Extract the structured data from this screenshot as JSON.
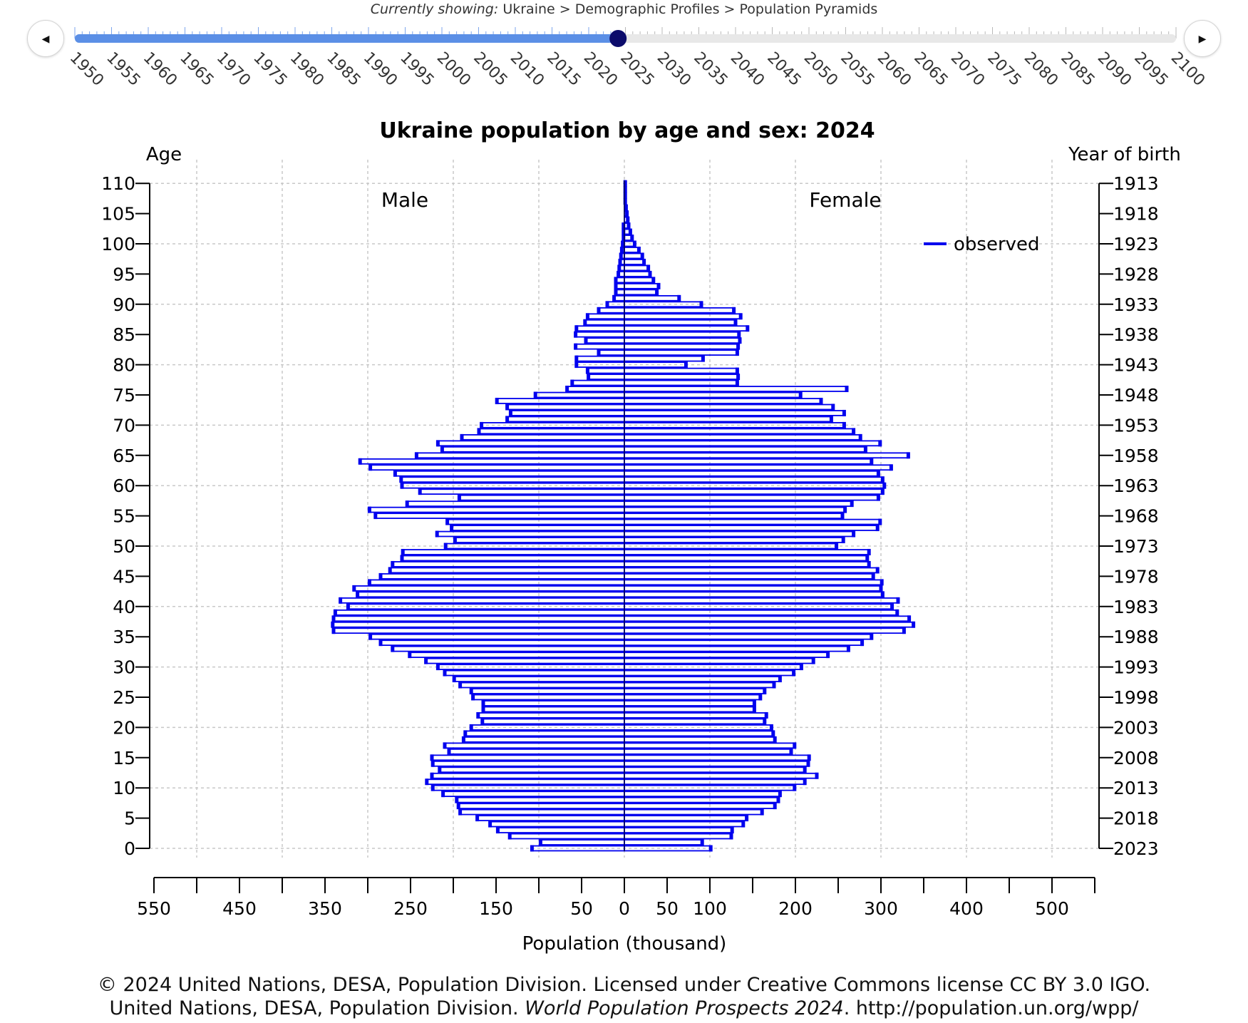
{
  "breadcrumb": {
    "prefix": "Currently showing:",
    "path": "Ukraine > Demographic Profiles > Population Pyramids"
  },
  "nav": {
    "prev_icon": "triangle-left-icon",
    "next_icon": "triangle-right-icon"
  },
  "timeline": {
    "start_year": 1950,
    "end_year": 2100,
    "selected_year": 2024,
    "label_step": 5,
    "tick_step": 1,
    "active_color": "#5b8fe6",
    "track_color": "#e8e8e8",
    "handle_color": "#0b0b6b",
    "labels": [
      "1950",
      "1955",
      "1960",
      "1965",
      "1970",
      "1975",
      "1980",
      "1985",
      "1990",
      "1995",
      "2000",
      "2005",
      "2010",
      "2015",
      "2020",
      "2025",
      "2030",
      "2035",
      "2040",
      "2045",
      "2050",
      "2055",
      "2060",
      "2065",
      "2070",
      "2075",
      "2080",
      "2085",
      "2090",
      "2095",
      "2100"
    ]
  },
  "chart_data": {
    "type": "bar",
    "orientation": "horizontal-pyramid",
    "title": "Ukraine population by age and sex: 2024",
    "ylabel_left": "Age",
    "ylabel_right": "Year of birth",
    "xlabel": "Population (thousand)",
    "male_label": "Male",
    "female_label": "Female",
    "legend": {
      "label": "observed",
      "color": "#0000ee",
      "placement": "top-right"
    },
    "grid": true,
    "age_range": [
      0,
      110
    ],
    "x_axis_ticks": [
      "550",
      "450",
      "350",
      "250",
      "150",
      "50",
      "0",
      "50",
      "100",
      "200",
      "300",
      "400",
      "500"
    ],
    "age_ticks": [
      "0",
      "5",
      "10",
      "15",
      "20",
      "25",
      "30",
      "35",
      "40",
      "45",
      "50",
      "55",
      "60",
      "65",
      "70",
      "75",
      "80",
      "85",
      "90",
      "95",
      "100",
      "105",
      "110"
    ],
    "birth_year_ticks": [
      "2023",
      "2018",
      "2013",
      "2008",
      "2003",
      "1998",
      "1993",
      "1988",
      "1983",
      "1978",
      "1973",
      "1968",
      "1963",
      "1958",
      "1953",
      "1948",
      "1943",
      "1938",
      "1933",
      "1928",
      "1923",
      "1918",
      "1913"
    ],
    "ages": [
      0,
      1,
      2,
      3,
      4,
      5,
      6,
      7,
      8,
      9,
      10,
      11,
      12,
      13,
      14,
      15,
      16,
      17,
      18,
      19,
      20,
      21,
      22,
      23,
      24,
      25,
      26,
      27,
      28,
      29,
      30,
      31,
      32,
      33,
      34,
      35,
      36,
      37,
      38,
      39,
      40,
      41,
      42,
      43,
      44,
      45,
      46,
      47,
      48,
      49,
      50,
      51,
      52,
      53,
      54,
      55,
      56,
      57,
      58,
      59,
      60,
      61,
      62,
      63,
      64,
      65,
      66,
      67,
      68,
      69,
      70,
      71,
      72,
      73,
      74,
      75,
      76,
      77,
      78,
      79,
      80,
      81,
      82,
      83,
      84,
      85,
      86,
      87,
      88,
      89,
      90,
      91,
      92,
      93,
      94,
      95,
      96,
      97,
      98,
      99,
      100,
      101,
      102,
      103,
      104,
      105,
      106,
      107,
      108,
      109,
      110
    ],
    "male": [
      108,
      98,
      134,
      148,
      157,
      172,
      192,
      194,
      196,
      212,
      224,
      231,
      225,
      216,
      224,
      225,
      205,
      210,
      188,
      186,
      179,
      166,
      171,
      165,
      165,
      177,
      179,
      192,
      199,
      210,
      218,
      232,
      251,
      271,
      285,
      297,
      340,
      341,
      340,
      338,
      323,
      332,
      312,
      316,
      298,
      285,
      274,
      271,
      260,
      259,
      209,
      198,
      219,
      202,
      207,
      291,
      298,
      254,
      193,
      239,
      260,
      261,
      268,
      297,
      309,
      243,
      213,
      218,
      190,
      170,
      167,
      137,
      133,
      137,
      149,
      104,
      67,
      61,
      42,
      43,
      56,
      56,
      30,
      57,
      45,
      57,
      56,
      46,
      43,
      30,
      20,
      12,
      10,
      10,
      10,
      7,
      6,
      5,
      4,
      3,
      2,
      1,
      1,
      1,
      0,
      0,
      0,
      0,
      0,
      0,
      0
    ],
    "female": [
      101,
      91,
      125,
      126,
      139,
      143,
      161,
      176,
      180,
      182,
      199,
      211,
      225,
      211,
      215,
      216,
      195,
      199,
      176,
      174,
      172,
      164,
      166,
      152,
      152,
      159,
      164,
      175,
      182,
      198,
      207,
      221,
      238,
      262,
      278,
      289,
      327,
      338,
      333,
      319,
      313,
      320,
      302,
      300,
      301,
      291,
      296,
      286,
      284,
      286,
      248,
      256,
      268,
      296,
      299,
      255,
      258,
      266,
      297,
      302,
      304,
      302,
      297,
      312,
      289,
      332,
      282,
      299,
      276,
      268,
      257,
      242,
      257,
      244,
      230,
      206,
      260,
      132,
      133,
      132,
      72,
      92,
      132,
      133,
      135,
      134,
      144,
      130,
      136,
      128,
      90,
      64,
      38,
      40,
      34,
      30,
      28,
      23,
      21,
      17,
      12,
      9,
      7,
      5,
      4,
      3,
      2,
      1,
      1,
      1,
      1
    ]
  },
  "footer": {
    "line1": "© 2024 United Nations, DESA, Population Division. Licensed under Creative Commons license CC BY 3.0 IGO.",
    "line2_prefix": "United Nations, DESA, Population Division.",
    "line2_title": "World Population Prospects 2024",
    "line2_suffix": ". http://population.un.org/wpp/"
  }
}
